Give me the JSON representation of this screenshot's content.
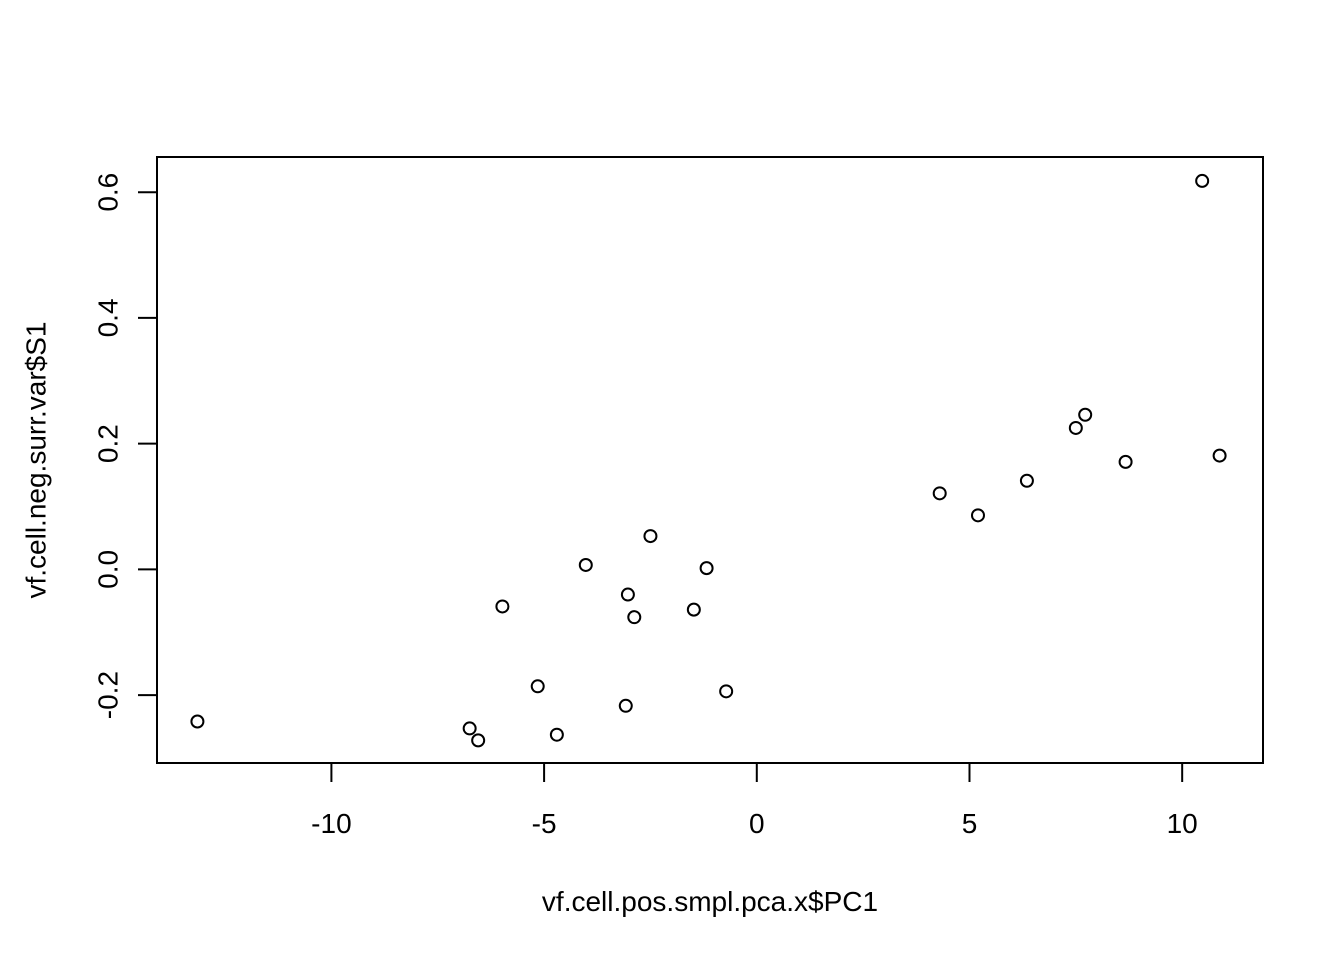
{
  "chart_data": {
    "type": "scatter",
    "title": "",
    "xlabel": "vf.cell.pos.smpl.pca.x$PC1",
    "ylabel": "vf.cell.neg.surr.var$S1",
    "xlim": [
      -14.1,
      11.9
    ],
    "ylim": [
      -0.308,
      0.656
    ],
    "xticks": [
      -10,
      -5,
      0,
      5,
      10
    ],
    "xtick_labels": [
      "-10",
      "-5",
      "0",
      "5",
      "10"
    ],
    "yticks": [
      -0.2,
      0.0,
      0.2,
      0.4,
      0.6
    ],
    "ytick_labels": [
      "-0.2",
      "0.0",
      "0.2",
      "0.4",
      "0.6"
    ],
    "grid": false,
    "legend": "none",
    "point_style": "open-circle",
    "colors": {
      "points": "#000000",
      "axes": "#000000",
      "background": "#ffffff"
    },
    "points": [
      {
        "x": -13.15,
        "y": -0.242
      },
      {
        "x": -6.75,
        "y": -0.253
      },
      {
        "x": -6.55,
        "y": -0.272
      },
      {
        "x": -5.98,
        "y": -0.059
      },
      {
        "x": -5.15,
        "y": -0.186
      },
      {
        "x": -4.7,
        "y": -0.263
      },
      {
        "x": -4.02,
        "y": 0.007
      },
      {
        "x": -3.08,
        "y": -0.217
      },
      {
        "x": -3.03,
        "y": -0.04
      },
      {
        "x": -2.88,
        "y": -0.076
      },
      {
        "x": -2.5,
        "y": 0.053
      },
      {
        "x": -1.48,
        "y": -0.064
      },
      {
        "x": -1.18,
        "y": 0.002
      },
      {
        "x": -0.72,
        "y": -0.194
      },
      {
        "x": 4.3,
        "y": 0.121
      },
      {
        "x": 5.2,
        "y": 0.086
      },
      {
        "x": 6.35,
        "y": 0.141
      },
      {
        "x": 7.5,
        "y": 0.225
      },
      {
        "x": 7.72,
        "y": 0.246
      },
      {
        "x": 8.67,
        "y": 0.171
      },
      {
        "x": 10.47,
        "y": 0.618
      },
      {
        "x": 10.88,
        "y": 0.181
      }
    ]
  }
}
